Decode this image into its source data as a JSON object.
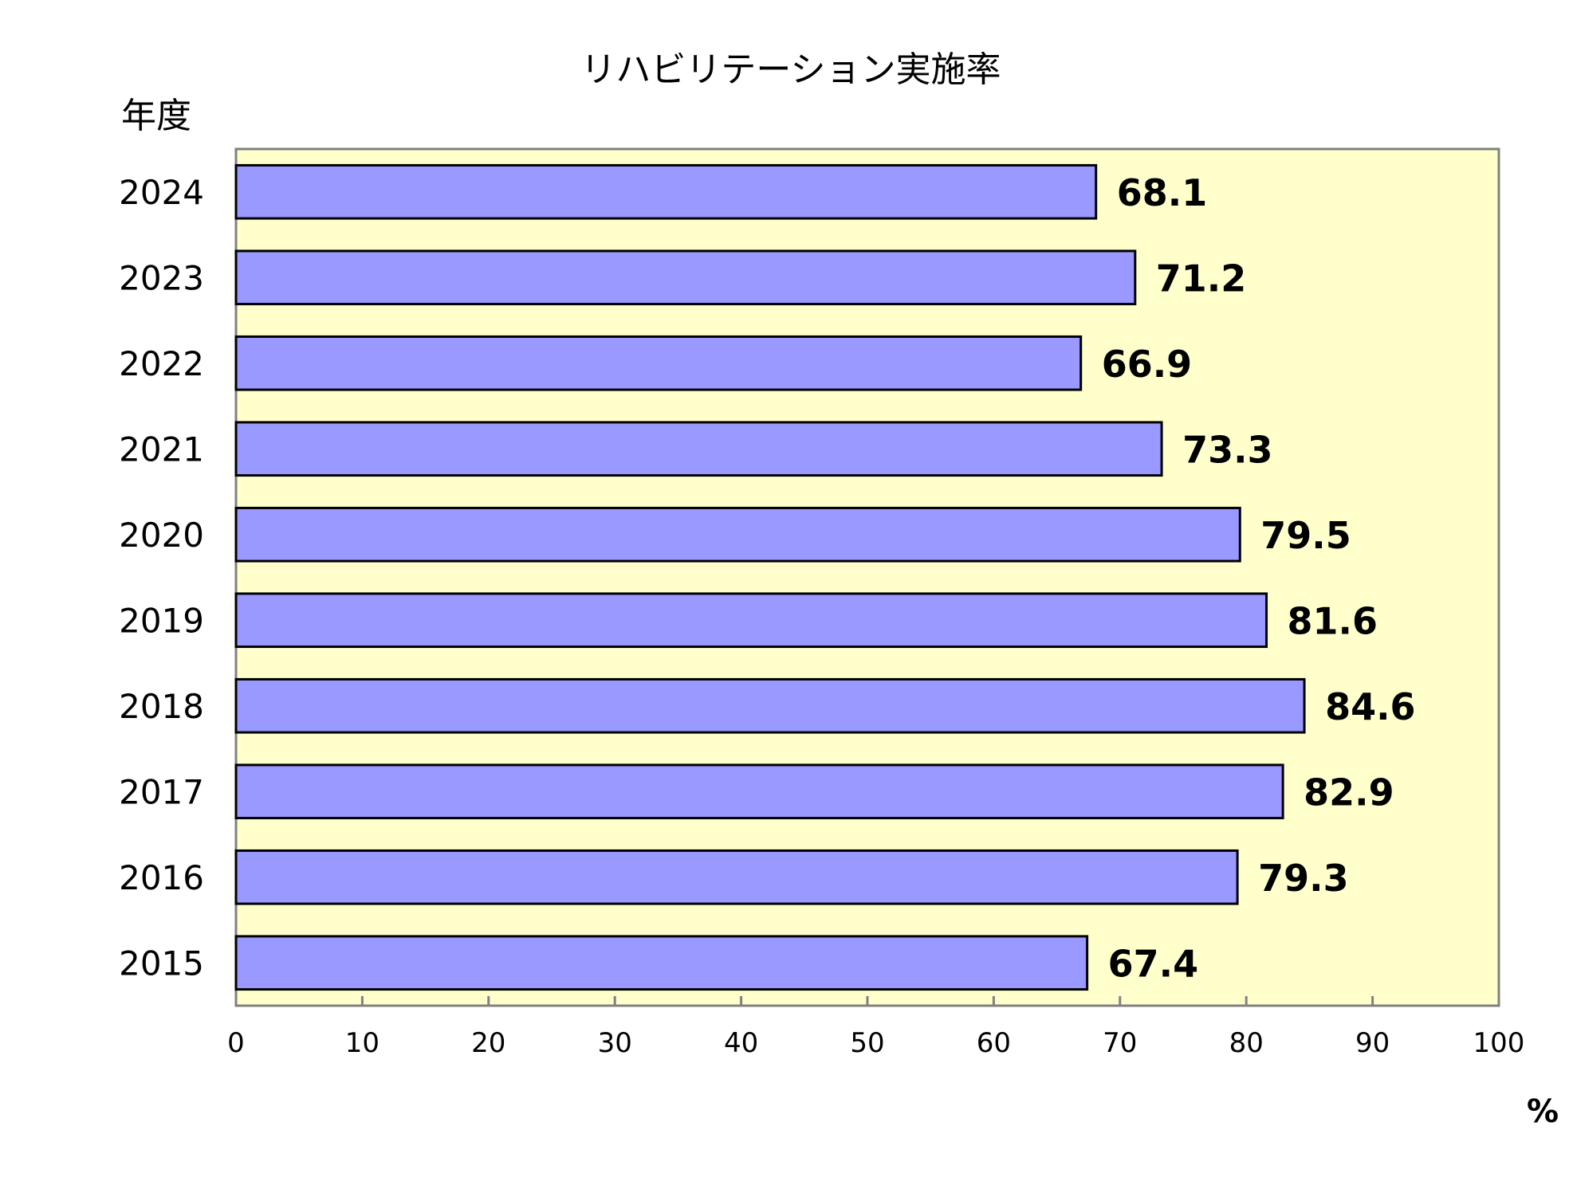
{
  "chart_data": {
    "type": "bar",
    "orientation": "horizontal",
    "title": "リハビリテーション実施率",
    "ylabel": "年度",
    "xlabel": "%",
    "categories": [
      "2024",
      "2023",
      "2022",
      "2021",
      "2020",
      "2019",
      "2018",
      "2017",
      "2016",
      "2015"
    ],
    "values": [
      68.1,
      71.2,
      66.9,
      73.3,
      79.5,
      81.6,
      84.6,
      82.9,
      79.3,
      67.4
    ],
    "value_labels": [
      "68.1",
      "71.2",
      "66.9",
      "73.3",
      "79.5",
      "81.6",
      "84.6",
      "82.9",
      "79.3",
      "67.4"
    ],
    "xlim": [
      0,
      100
    ],
    "xticks": [
      0,
      10,
      20,
      30,
      40,
      50,
      60,
      70,
      80,
      90,
      100
    ],
    "xtick_labels": [
      "0",
      "10",
      "20",
      "30",
      "40",
      "50",
      "60",
      "70",
      "80",
      "90",
      "100"
    ],
    "grid": false,
    "colors": {
      "bar_fill": "#9999ff",
      "bar_stroke": "#000000",
      "plot_background": "#ffffcc",
      "axis": "#808080"
    }
  }
}
